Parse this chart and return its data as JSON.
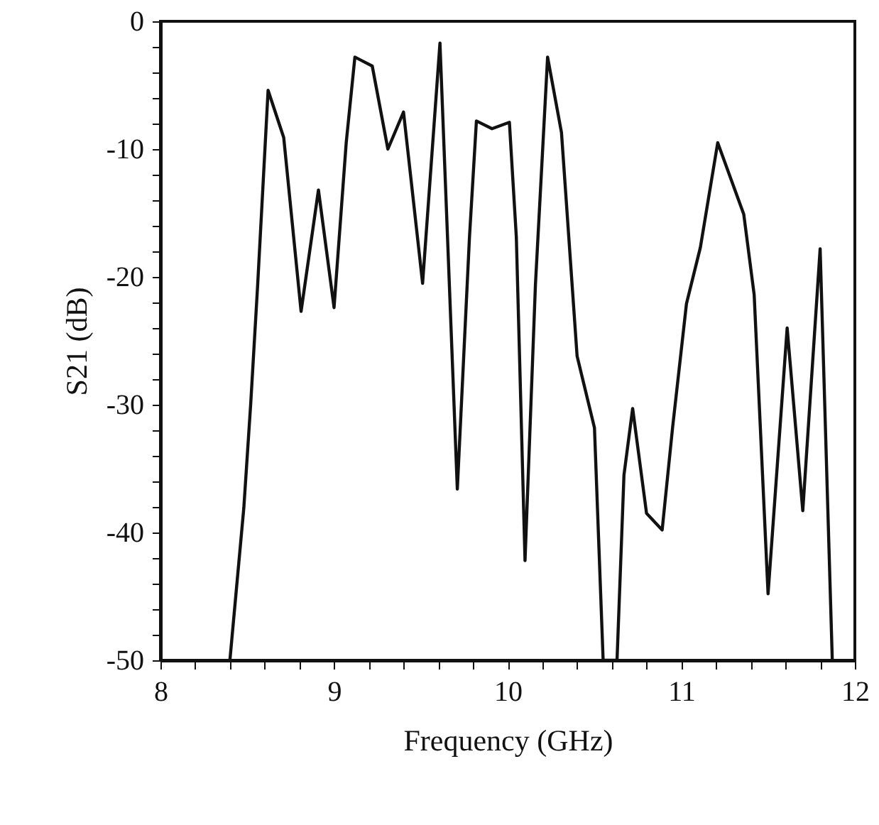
{
  "chart_data": {
    "type": "line",
    "xlabel": "Frequency (GHz)",
    "ylabel": "S21 (dB)",
    "x": [
      8.4,
      8.48,
      8.52,
      8.56,
      8.62,
      8.71,
      8.81,
      8.91,
      9.0,
      9.07,
      9.12,
      9.22,
      9.31,
      9.4,
      9.51,
      9.61,
      9.71,
      9.78,
      9.82,
      9.91,
      10.01,
      10.05,
      10.1,
      10.16,
      10.23,
      10.31,
      10.4,
      10.5,
      10.55,
      10.63,
      10.67,
      10.72,
      10.8,
      10.89,
      10.95,
      11.03,
      11.11,
      11.21,
      11.36,
      11.42,
      11.5,
      11.61,
      11.7,
      11.8,
      11.87
    ],
    "series": [
      {
        "color": "#111111",
        "values": [
          -50,
          -38.1,
          -29.9,
          -20.6,
          -5.4,
          -9.1,
          -22.7,
          -13.2,
          -22.4,
          -9.5,
          -2.8,
          -3.5,
          -10.0,
          -7.1,
          -20.5,
          -1.7,
          -36.6,
          -16.9,
          -7.8,
          -8.4,
          -7.9,
          -16.9,
          -42.2,
          -20.6,
          -2.8,
          -8.7,
          -26.2,
          -31.8,
          -50,
          -50,
          -35.5,
          -30.3,
          -38.5,
          -39.8,
          -31.8,
          -22.1,
          -17.7,
          -9.5,
          -15.1,
          -21.4,
          -44.8,
          -24.0,
          -38.3,
          -17.8,
          -50
        ]
      }
    ],
    "xlim": [
      8,
      12
    ],
    "ylim": [
      -50,
      0
    ],
    "xticks": [
      8,
      {
        "value": 8.2,
        "label": null
      },
      {
        "value": 8.4,
        "label": null
      },
      {
        "value": 8.6,
        "label": null
      },
      {
        "value": 8.8,
        "label": null
      },
      9,
      {
        "value": 9.2,
        "label": null
      },
      {
        "value": 9.4,
        "label": null
      },
      {
        "value": 9.6,
        "label": null
      },
      {
        "value": 9.8,
        "label": null
      },
      10,
      {
        "value": 10.2,
        "label": null
      },
      {
        "value": 10.4,
        "label": null
      },
      {
        "value": 10.6,
        "label": null
      },
      {
        "value": 10.8,
        "label": null
      },
      11,
      {
        "value": 11.2,
        "label": null
      },
      {
        "value": 11.4,
        "label": null
      },
      {
        "value": 11.6,
        "label": null
      },
      {
        "value": 11.8,
        "label": null
      },
      12
    ],
    "yticks": [
      -50,
      {
        "value": -48,
        "label": null
      },
      {
        "value": -46,
        "label": null
      },
      {
        "value": -44,
        "label": null
      },
      {
        "value": -42,
        "label": null
      },
      -40,
      {
        "value": -38,
        "label": null
      },
      {
        "value": -36,
        "label": null
      },
      {
        "value": -34,
        "label": null
      },
      {
        "value": -32,
        "label": null
      },
      -30,
      {
        "value": -28,
        "label": null
      },
      {
        "value": -26,
        "label": null
      },
      {
        "value": -24,
        "label": null
      },
      {
        "value": -22,
        "label": null
      },
      -20,
      {
        "value": -18,
        "label": null
      },
      {
        "value": -16,
        "label": null
      },
      {
        "value": -14,
        "label": null
      },
      {
        "value": -12,
        "label": null
      },
      -10,
      {
        "value": -8,
        "label": null
      },
      {
        "value": -6,
        "label": null
      },
      {
        "value": -4,
        "label": null
      },
      {
        "value": -2,
        "label": null
      },
      0
    ],
    "grid": false,
    "line_style": "solid"
  }
}
